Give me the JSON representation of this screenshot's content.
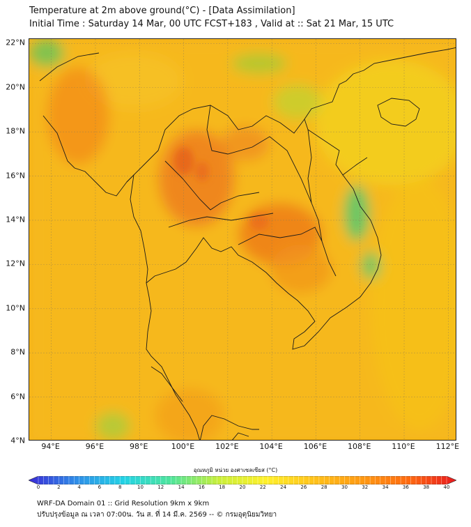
{
  "header": {
    "title": "Temperature at 2m above ground(°C) - [Data Assimilation]",
    "subtitle": "Initial Time : Saturday 14 Mar, 00 UTC FCST+183 , Valid at :: Sat 21 Mar, 15 UTC"
  },
  "map": {
    "lat_labels": [
      "22°N",
      "20°N",
      "18°N",
      "16°N",
      "14°N",
      "12°N",
      "10°N",
      "8°N",
      "6°N",
      "4°N"
    ],
    "lon_labels": [
      "94°E",
      "96°E",
      "98°E",
      "100°E",
      "102°E",
      "104°E",
      "106°E",
      "108°E",
      "110°E",
      "112°E"
    ],
    "lat_values": [
      22,
      20,
      18,
      16,
      14,
      12,
      10,
      8,
      6,
      4
    ],
    "lon_values": [
      94,
      96,
      98,
      100,
      102,
      104,
      106,
      108,
      110,
      112
    ],
    "lat_range": [
      4,
      22.2
    ],
    "lon_range": [
      93,
      112.4
    ],
    "gridlines": true,
    "background_color": "#f5b31a"
  },
  "colorbar": {
    "label": "อุณหภูมิ หน่วย องศาเซลเซียส (°C)",
    "ticks": [
      "0",
      "2",
      "4",
      "6",
      "8",
      "10",
      "12",
      "14",
      "16",
      "18",
      "20",
      "22",
      "24",
      "26",
      "28",
      "30",
      "32",
      "34",
      "36",
      "38",
      "40"
    ],
    "min": 0,
    "max": 40,
    "colors": [
      "#3a2ad6",
      "#2f8de8",
      "#22d3e6",
      "#4fe59a",
      "#c9ef3a",
      "#fff02a",
      "#ffc21a",
      "#ff9a12",
      "#ff6a10",
      "#e8181e"
    ]
  },
  "footer": {
    "line1": "WRF-DA Domain 01 :: Grid Resolution 9km x 9km",
    "line2": "ปรับปรุงข้อมูล ณ เวลา 07:00น. วัน ส. ที่ 14 มี.ค. 2569 -- © กรมอุตุนิยมวิทยา"
  }
}
